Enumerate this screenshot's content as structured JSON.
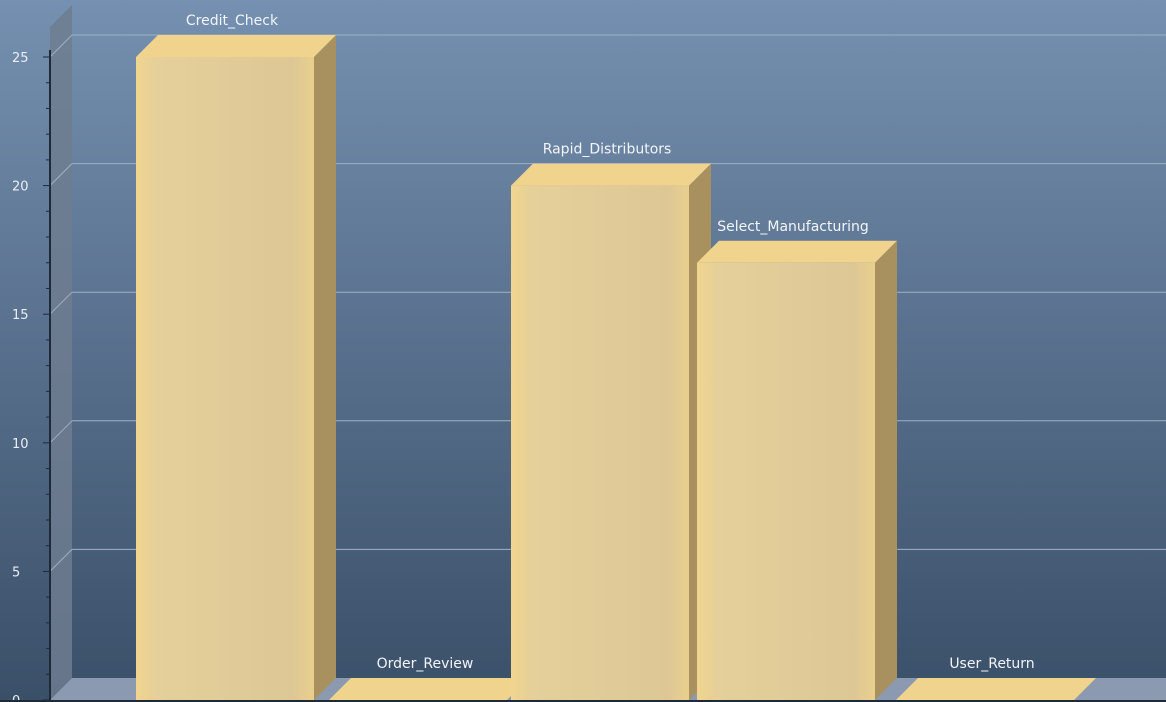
{
  "chart_data": {
    "type": "bar",
    "style": "3d",
    "title": "",
    "xlabel": "",
    "ylabel": "",
    "categories": [
      "Credit_Check",
      "Order_Review",
      "Rapid_Distributors",
      "Select_Manufacturing",
      "User_Return"
    ],
    "values": [
      25,
      0,
      20,
      17,
      0
    ],
    "ylim": [
      0,
      25
    ],
    "yticks": [
      0,
      5,
      10,
      15,
      20,
      25
    ],
    "grid": true,
    "legend": "none",
    "data_labels": "category names above bars"
  },
  "colors": {
    "background_top": "#6f8bab",
    "background_bottom": "#3b5069",
    "bar_front": "#e4cd95",
    "bar_top": "#f0d48e",
    "bar_side": "#a8915e",
    "gridline": "#9fb1c6",
    "left_wall": "#6f7d8f",
    "floor": "#8b9ab0",
    "axis_text": "#e9eef5"
  }
}
